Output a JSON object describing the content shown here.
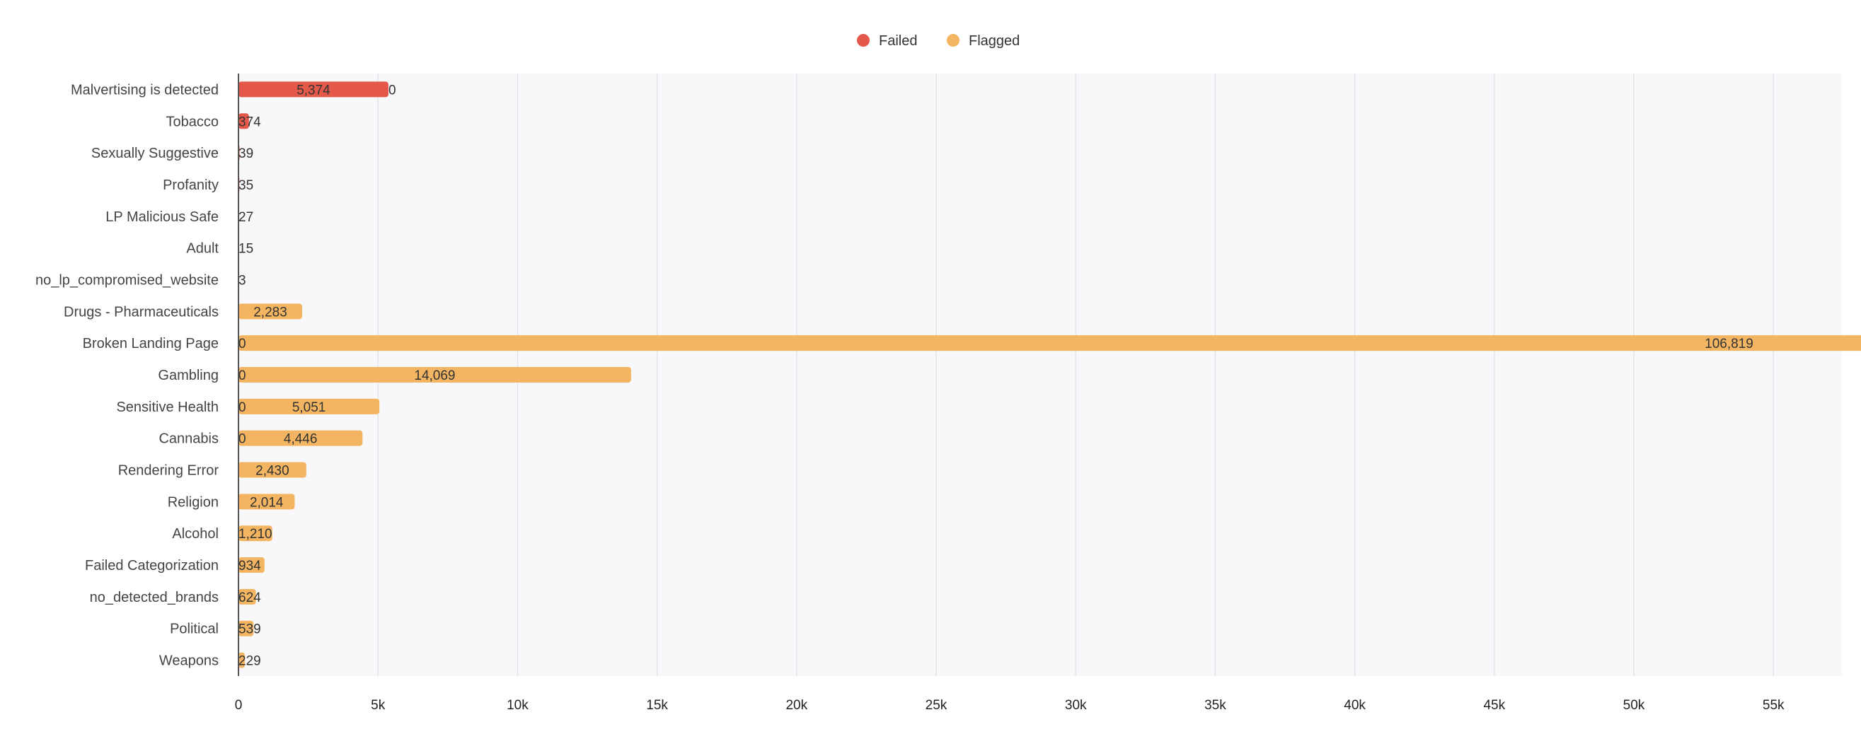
{
  "chart_data": {
    "type": "bar",
    "orientation": "horizontal",
    "stacked": true,
    "categories": [
      "Malvertising is detected",
      "Tobacco",
      "Sexually Suggestive",
      "Profanity",
      "LP Malicious Safe",
      "Adult",
      "no_lp_compromised_website",
      "Drugs - Pharmaceuticals",
      "Broken Landing Page",
      "Gambling",
      "Sensitive Health",
      "Cannabis",
      "Rendering Error",
      "Religion",
      "Alcohol",
      "Failed Categorization",
      "no_detected_brands",
      "Political",
      "Weapons"
    ],
    "series": [
      {
        "name": "Failed",
        "color": "#e4584a",
        "values": [
          5374,
          374,
          39,
          35,
          27,
          15,
          3,
          0,
          0,
          0,
          0,
          0,
          0,
          0,
          0,
          0,
          0,
          0,
          0
        ],
        "labels": [
          "5,374",
          "374",
          "39",
          "35",
          "27",
          "15",
          "3",
          "",
          "0",
          "0",
          "0",
          "0",
          "",
          "",
          "",
          "",
          "",
          "",
          ""
        ]
      },
      {
        "name": "Flagged",
        "color": "#f3b562",
        "values": [
          0,
          0,
          0,
          0,
          0,
          0,
          0,
          2283,
          106819,
          14069,
          5051,
          4446,
          2430,
          2014,
          1210,
          934,
          624,
          539,
          229
        ],
        "labels": [
          "0",
          "",
          "",
          "",
          "",
          "",
          "",
          "2,283",
          "106,819",
          "14,069",
          "5,051",
          "4,446",
          "2,430",
          "2,014",
          "1,210",
          "934",
          "624",
          "539",
          "229"
        ]
      }
    ],
    "xlim": [
      0,
      115000
    ],
    "xticks": [
      "0",
      "5k",
      "10k",
      "15k",
      "20k",
      "25k",
      "30k",
      "35k",
      "40k",
      "45k",
      "50k",
      "55k",
      "60k",
      "65k",
      "70k",
      "75k",
      "80k",
      "85k",
      "90k",
      "95k",
      "100k",
      "105k",
      "110k",
      "115k"
    ],
    "grid": true,
    "legend_position": "top-center"
  }
}
